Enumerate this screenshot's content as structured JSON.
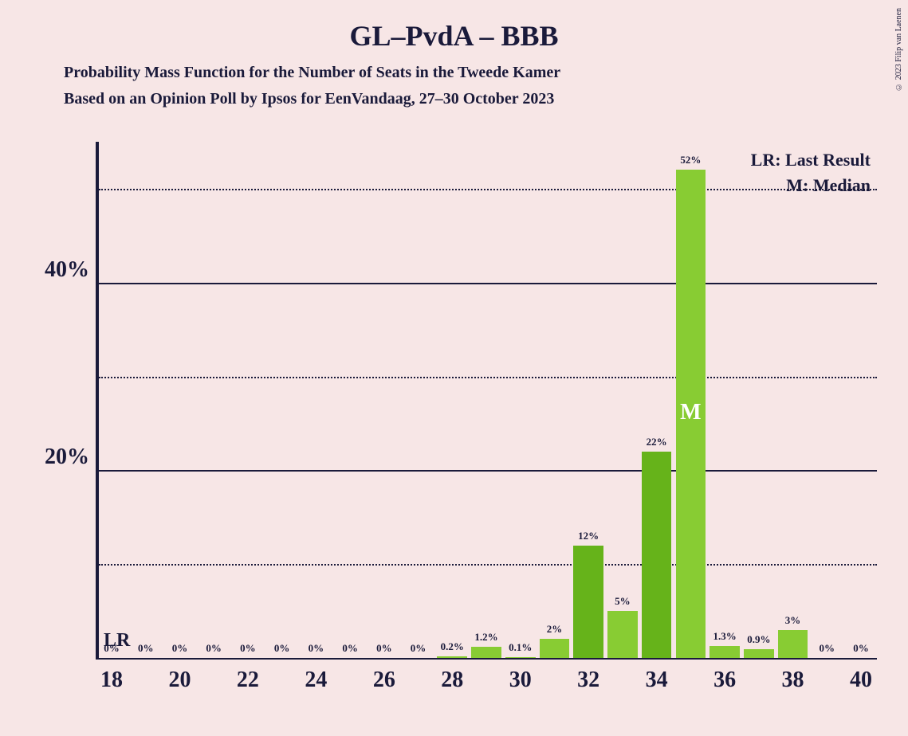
{
  "title": "GL–PvdA – BBB",
  "subtitle1": "Probability Mass Function for the Number of Seats in the Tweede Kamer",
  "subtitle2": "Based on an Opinion Poll by Ipsos for EenVandaag, 27–30 October 2023",
  "copyright": "© 2023 Filip van Laenen",
  "legend": {
    "lr": "LR: Last Result",
    "m": "M: Median"
  },
  "annotations": {
    "lr_marker": "LR",
    "m_marker": "M"
  },
  "chart": {
    "type": "bar",
    "background_color": "#f7e6e6",
    "bar_colors": [
      "#88cc33",
      "#66b31a"
    ],
    "text_color": "#1a1a3a",
    "xlim": [
      18,
      40
    ],
    "ylim": [
      0,
      55
    ],
    "y_major_ticks": [
      20,
      40
    ],
    "y_minor_ticks": [
      10,
      30,
      50
    ],
    "y_tick_labels": {
      "20": "20%",
      "40": "40%"
    },
    "x_ticks": [
      18,
      20,
      22,
      24,
      26,
      28,
      30,
      32,
      34,
      36,
      38,
      40
    ],
    "x_min_data": 18,
    "x_max_data": 40,
    "median_x": 35,
    "lr_x": 18,
    "bars": [
      {
        "x": 18,
        "value": 0,
        "label": "0%",
        "color": "#88cc33"
      },
      {
        "x": 19,
        "value": 0,
        "label": "0%",
        "color": "#88cc33"
      },
      {
        "x": 20,
        "value": 0,
        "label": "0%",
        "color": "#88cc33"
      },
      {
        "x": 21,
        "value": 0,
        "label": "0%",
        "color": "#88cc33"
      },
      {
        "x": 22,
        "value": 0,
        "label": "0%",
        "color": "#88cc33"
      },
      {
        "x": 23,
        "value": 0,
        "label": "0%",
        "color": "#88cc33"
      },
      {
        "x": 24,
        "value": 0,
        "label": "0%",
        "color": "#88cc33"
      },
      {
        "x": 25,
        "value": 0,
        "label": "0%",
        "color": "#88cc33"
      },
      {
        "x": 26,
        "value": 0,
        "label": "0%",
        "color": "#88cc33"
      },
      {
        "x": 27,
        "value": 0,
        "label": "0%",
        "color": "#88cc33"
      },
      {
        "x": 28,
        "value": 0.2,
        "label": "0.2%",
        "color": "#88cc33"
      },
      {
        "x": 29,
        "value": 1.2,
        "label": "1.2%",
        "color": "#88cc33"
      },
      {
        "x": 30,
        "value": 0.1,
        "label": "0.1%",
        "color": "#88cc33"
      },
      {
        "x": 31,
        "value": 2,
        "label": "2%",
        "color": "#88cc33"
      },
      {
        "x": 32,
        "value": 12,
        "label": "12%",
        "color": "#66b31a"
      },
      {
        "x": 33,
        "value": 5,
        "label": "5%",
        "color": "#88cc33"
      },
      {
        "x": 34,
        "value": 22,
        "label": "22%",
        "color": "#66b31a"
      },
      {
        "x": 35,
        "value": 52,
        "label": "52%",
        "color": "#88cc33"
      },
      {
        "x": 36,
        "value": 1.3,
        "label": "1.3%",
        "color": "#88cc33"
      },
      {
        "x": 37,
        "value": 0.9,
        "label": "0.9%",
        "color": "#88cc33"
      },
      {
        "x": 38,
        "value": 3,
        "label": "3%",
        "color": "#88cc33"
      },
      {
        "x": 39,
        "value": 0,
        "label": "0%",
        "color": "#88cc33"
      },
      {
        "x": 40,
        "value": 0,
        "label": "0%",
        "color": "#88cc33"
      }
    ]
  }
}
